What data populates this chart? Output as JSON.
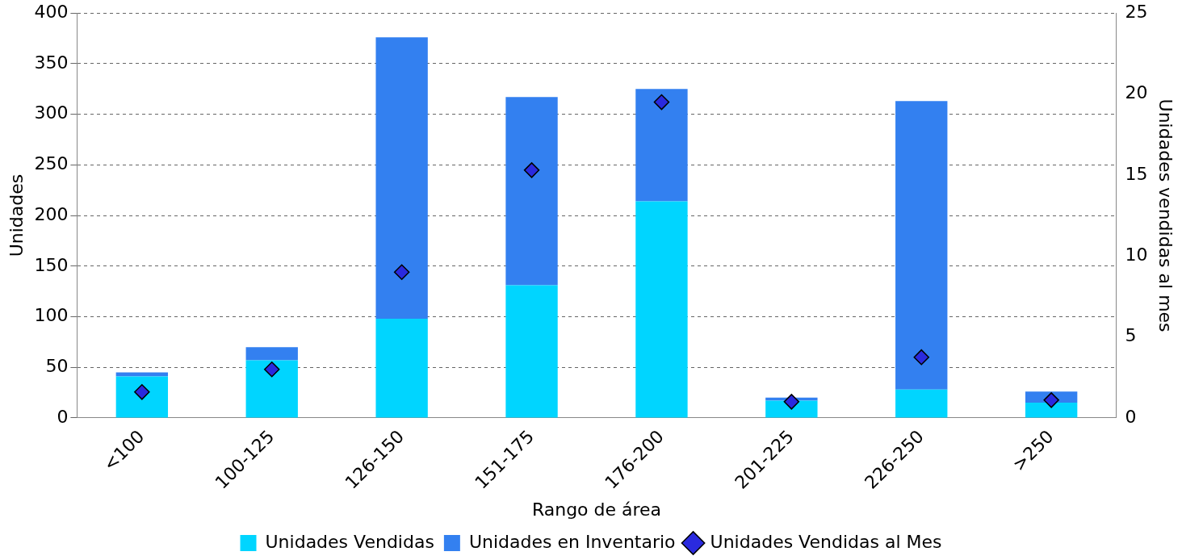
{
  "chart_data": {
    "type": "bar",
    "stacked": true,
    "xlabel": "Rango de área",
    "ylabel": "Unidades",
    "y2label": "Unidades vendidas al mes",
    "categories": [
      "<100",
      "100-125",
      "126-150",
      "151-175",
      "176-200",
      "201-225",
      "226-250",
      ">250"
    ],
    "series": [
      {
        "name": "Unidades Vendidas",
        "color": "#00d5ff",
        "values": [
          41,
          57,
          98,
          131,
          214,
          17,
          28,
          15
        ]
      },
      {
        "name": "Unidades en Inventario",
        "color": "#3380f0",
        "values": [
          4,
          13,
          278,
          186,
          111,
          3,
          285,
          11
        ]
      },
      {
        "name": "Unidades Vendidas al Mes",
        "type": "scatter",
        "axis": "y2",
        "color": "#2a2adf",
        "marker": "diamond",
        "values": [
          1.6,
          3.0,
          9.0,
          15.3,
          19.5,
          1.0,
          3.75,
          1.1
        ]
      }
    ],
    "ylim": [
      0,
      400
    ],
    "yticks": [
      0,
      50,
      100,
      150,
      200,
      250,
      300,
      350,
      400
    ],
    "y2lim": [
      0,
      25
    ],
    "y2ticks": [
      0,
      5,
      10,
      15,
      20,
      25
    ],
    "grid": "y",
    "legend": "bottom"
  }
}
